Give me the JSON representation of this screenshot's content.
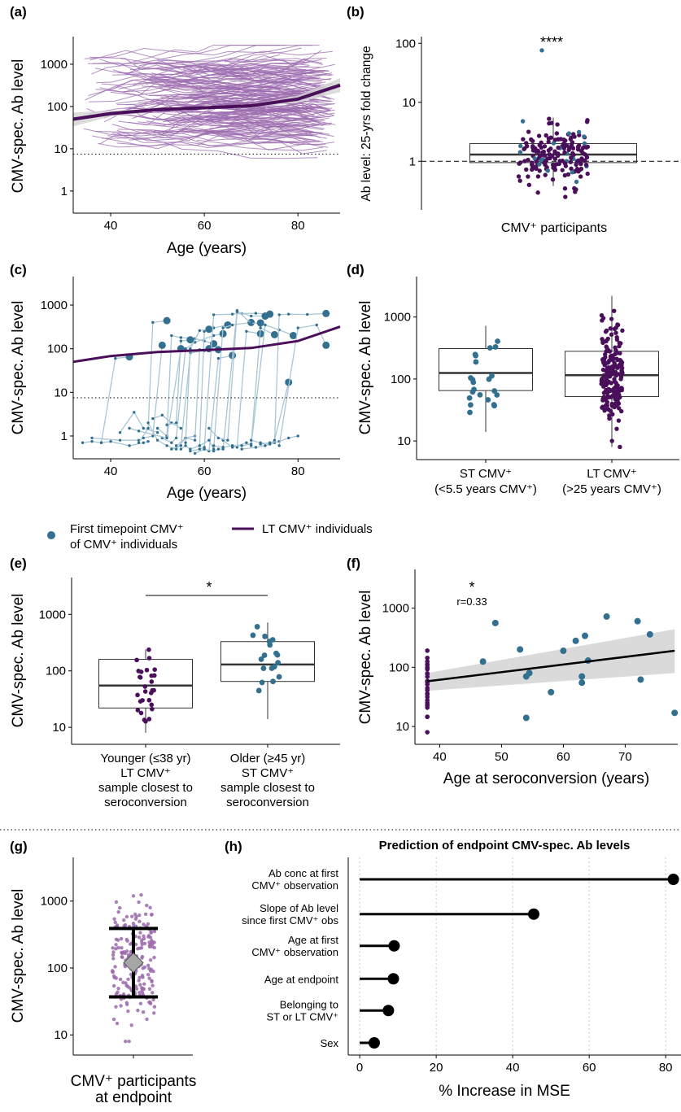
{
  "colors": {
    "lt": "#4a0f5a",
    "lt_light": "#9b6aad",
    "st": "#33708f",
    "st_line": "#a9c6d4",
    "ribbon": "#d3d3d3",
    "grey": "#b0b0b0"
  },
  "panel_labels": [
    "(a)",
    "(b)",
    "(c)",
    "(d)",
    "(e)",
    "(f)",
    "(g)",
    "(h)"
  ],
  "legend": {
    "first_timepoint": "First timepoint CMV⁺\nof CMV⁺ individuals",
    "lt_individuals": "LT CMV⁺ individuals"
  },
  "chart_data": [
    {
      "panel": "(a)",
      "type": "line",
      "xlabel": "Age (years)",
      "ylabel": "CMV-spec. Ab level",
      "xlim": [
        32,
        89
      ],
      "ylim": [
        0.3,
        4500
      ],
      "yscale": "log",
      "x_ticks": [
        "40",
        "60",
        "80"
      ],
      "y_ticks": [
        "1",
        "10",
        "100",
        "1000"
      ],
      "threshold": 7.5,
      "trend": {
        "x": [
          32,
          40,
          50,
          60,
          70,
          80,
          89
        ],
        "y": [
          50,
          68,
          84,
          93,
          104,
          150,
          320
        ],
        "lower": [
          34,
          58,
          78,
          87,
          95,
          124,
          220
        ],
        "upper": [
          72,
          80,
          90,
          99,
          112,
          182,
          470
        ]
      }
    },
    {
      "panel": "(b)",
      "type": "box",
      "xlabel": "CMV⁺ participants",
      "ylabel": "Ab level: 25-yrs fold change",
      "ylim": [
        0.15,
        130
      ],
      "yscale": "log",
      "y_ticks": [
        "1",
        "10",
        "100"
      ],
      "significance": "****",
      "box": {
        "q1": 0.95,
        "median": 1.3,
        "q3": 2.0,
        "whisker_low": 0.38,
        "whisker_high": 5.5
      },
      "outlier": 76
    },
    {
      "panel": "(c)",
      "type": "line",
      "xlabel": "Age (years)",
      "ylabel": "CMV-spec. Ab level",
      "xlim": [
        32,
        89
      ],
      "ylim": [
        0.3,
        4500
      ],
      "yscale": "log",
      "x_ticks": [
        "40",
        "60",
        "80"
      ],
      "y_ticks": [
        "1",
        "10",
        "100",
        "1000"
      ],
      "threshold": 7.5,
      "trend": {
        "x": [
          32,
          40,
          50,
          60,
          70,
          80,
          89
        ],
        "y": [
          50,
          68,
          84,
          93,
          104,
          150,
          320
        ]
      },
      "trajectories": [
        [
          [
            34,
            0.7
          ],
          [
            36,
            0.75
          ],
          [
            38,
            0.7
          ],
          [
            41,
            60
          ],
          [
            44,
            65
          ]
        ],
        [
          [
            36,
            0.9
          ],
          [
            42,
            0.8
          ],
          [
            46,
            0.8
          ]
        ],
        [
          [
            38,
            0.7
          ],
          [
            40,
            0.75
          ],
          [
            44,
            0.6
          ],
          [
            47,
            0.7
          ],
          [
            48,
            0.75
          ]
        ],
        [
          [
            42,
            1.2
          ],
          [
            45,
            3.5
          ],
          [
            47,
            1.5
          ],
          [
            50,
            1.2
          ]
        ],
        [
          [
            46,
            0.7
          ],
          [
            48,
            1.5
          ],
          [
            49,
            400
          ],
          [
            52,
            440
          ]
        ],
        [
          [
            47,
            0.9
          ],
          [
            49,
            1.0
          ],
          [
            51,
            120
          ]
        ],
        [
          [
            48,
            2.0
          ],
          [
            50,
            0.8
          ],
          [
            52,
            0.6
          ],
          [
            54,
            0.5
          ],
          [
            56,
            0.9
          ],
          [
            58,
            1.0
          ]
        ],
        [
          [
            49,
            2.5
          ],
          [
            51,
            3.0
          ],
          [
            53,
            2.0
          ],
          [
            55,
            1.5
          ]
        ],
        [
          [
            50,
            1.5
          ],
          [
            52,
            1.0
          ],
          [
            53,
            200
          ],
          [
            55,
            180
          ],
          [
            58,
            170
          ],
          [
            60,
            150
          ],
          [
            62,
            130
          ]
        ],
        [
          [
            51,
            0.9
          ],
          [
            53,
            0.7
          ],
          [
            54,
            0.9
          ],
          [
            56,
            100
          ],
          [
            58,
            140
          ],
          [
            62,
            200
          ],
          [
            64,
            220
          ]
        ],
        [
          [
            52,
            1.8
          ],
          [
            54,
            2.0
          ],
          [
            55,
            150
          ],
          [
            57,
            160
          ]
        ],
        [
          [
            53,
            0.5
          ],
          [
            55,
            0.6
          ],
          [
            57,
            80
          ],
          [
            60,
            90
          ],
          [
            63,
            95
          ]
        ],
        [
          [
            54,
            0.6
          ],
          [
            56,
            0.9
          ],
          [
            58,
            0.8
          ],
          [
            59,
            95
          ],
          [
            61,
            100
          ]
        ],
        [
          [
            55,
            0.5
          ],
          [
            56,
            0.6
          ],
          [
            57,
            0.5
          ],
          [
            59,
            0.6
          ],
          [
            60,
            250
          ],
          [
            62,
            300
          ],
          [
            65,
            350
          ]
        ],
        [
          [
            56,
            0.7
          ],
          [
            57,
            100
          ],
          [
            59,
            260
          ],
          [
            61,
            280
          ]
        ],
        [
          [
            57,
            0.45
          ],
          [
            59,
            0.5
          ],
          [
            60,
            0.55
          ],
          [
            62,
            600
          ],
          [
            66,
            620
          ],
          [
            68,
            640
          ],
          [
            71,
            650
          ],
          [
            74,
            620
          ]
        ],
        [
          [
            58,
            0.4
          ],
          [
            60,
            0.5
          ],
          [
            61,
            0.45
          ],
          [
            63,
            60
          ],
          [
            66,
            70
          ]
        ],
        [
          [
            59,
            0.6
          ],
          [
            61,
            0.8
          ],
          [
            62,
            0.5
          ],
          [
            64,
            300
          ],
          [
            66,
            350
          ],
          [
            70,
            400
          ]
        ],
        [
          [
            60,
            0.5
          ],
          [
            62,
            0.45
          ],
          [
            63,
            0.5
          ],
          [
            64,
            0.5
          ],
          [
            67,
            750
          ],
          [
            70,
            380
          ],
          [
            72,
            390
          ]
        ],
        [
          [
            62,
            0.6
          ],
          [
            64,
            0.55
          ],
          [
            66,
            0.6
          ],
          [
            67,
            0.55
          ],
          [
            69,
            250
          ],
          [
            72,
            220
          ]
        ],
        [
          [
            64,
            0.8
          ],
          [
            66,
            0.55
          ],
          [
            69,
            0.7
          ],
          [
            70,
            0.6
          ],
          [
            73,
            350
          ],
          [
            76,
            270
          ],
          [
            79,
            200
          ]
        ],
        [
          [
            66,
            0.6
          ],
          [
            68,
            0.6
          ],
          [
            70,
            0.65
          ],
          [
            72,
            300
          ],
          [
            75,
            210
          ]
        ],
        [
          [
            68,
            0.5
          ],
          [
            71,
            0.55
          ],
          [
            73,
            0.6
          ],
          [
            75,
            0.7
          ],
          [
            76,
            600
          ],
          [
            78,
            620
          ],
          [
            82,
            610
          ],
          [
            86,
            640
          ]
        ],
        [
          [
            70,
            0.8
          ],
          [
            72,
            0.7
          ],
          [
            74,
            0.65
          ],
          [
            75,
            0.8
          ],
          [
            78,
            17
          ]
        ],
        [
          [
            72,
            0.65
          ],
          [
            74,
            0.7
          ],
          [
            76,
            0.75
          ],
          [
            78,
            0.9
          ],
          [
            80,
            1.0
          ]
        ],
        [
          [
            44,
            1.5
          ],
          [
            46,
            1.3
          ],
          [
            52,
            0.9
          ],
          [
            55,
            100
          ]
        ],
        [
          [
            61,
            1.5
          ],
          [
            63,
            0.9
          ],
          [
            65,
            0.8
          ],
          [
            67,
            700
          ],
          [
            70,
            560
          ],
          [
            73,
            560
          ]
        ],
        [
          [
            76,
            0.6
          ],
          [
            80,
            300
          ],
          [
            84,
            350
          ],
          [
            86,
            120
          ]
        ]
      ]
    },
    {
      "panel": "(d)",
      "type": "box",
      "ylabel": "CMV-spec. Ab level",
      "ylim": [
        5,
        4500
      ],
      "yscale": "log",
      "y_ticks": [
        "10",
        "100",
        "1000"
      ],
      "categories": [
        "ST CMV⁺\n(<5.5 years CMV⁺)",
        "LT CMV⁺\n(>25 years CMV⁺)"
      ],
      "boxes": [
        {
          "q1": 65,
          "median": 125,
          "q3": 310,
          "whisker_low": 14,
          "whisker_high": 720
        },
        {
          "q1": 52,
          "median": 115,
          "q3": 280,
          "whisker_low": 8,
          "whisker_high": 2200
        }
      ]
    },
    {
      "panel": "(e)",
      "type": "box",
      "ylabel": "CMV-spec. Ab level",
      "ylim": [
        5,
        4500
      ],
      "yscale": "log",
      "y_ticks": [
        "10",
        "100",
        "1000"
      ],
      "categories": [
        "Younger (≤38  yr)\nLT CMV⁺\nsample closest to\nseroconversion",
        "Older (≥45  yr)\nST CMV⁺\nsample closest to\nseroconversion"
      ],
      "significance": "*",
      "boxes": [
        {
          "q1": 22,
          "median": 55,
          "q3": 160,
          "whisker_low": 8,
          "whisker_high": 240
        },
        {
          "q1": 65,
          "median": 130,
          "q3": 330,
          "whisker_low": 14,
          "whisker_high": 720
        }
      ]
    },
    {
      "panel": "(f)",
      "type": "scatter",
      "xlabel": "Age at seroconversion (years)",
      "ylabel": "CMV-spec. Ab level",
      "xlim": [
        36,
        78.5
      ],
      "ylim": [
        5,
        4500
      ],
      "yscale": "log",
      "x_ticks": [
        "40",
        "50",
        "60",
        "70"
      ],
      "y_ticks": [
        "10",
        "100",
        "1000"
      ],
      "significance": "*",
      "annotation": "r=0.33",
      "st_points": [
        [
          47,
          125
        ],
        [
          49,
          560
        ],
        [
          53,
          200
        ],
        [
          54,
          70
        ],
        [
          54,
          14
        ],
        [
          54.5,
          80
        ],
        [
          58,
          38
        ],
        [
          60,
          190
        ],
        [
          62,
          280
        ],
        [
          63,
          55
        ],
        [
          63,
          70
        ],
        [
          63.5,
          340
        ],
        [
          64,
          130
        ],
        [
          67,
          720
        ],
        [
          72,
          600
        ],
        [
          72.5,
          62
        ],
        [
          74,
          360
        ],
        [
          78,
          17
        ]
      ],
      "fit": {
        "x": [
          38,
          78
        ],
        "y": [
          58,
          190
        ],
        "lower": [
          40,
          80
        ],
        "upper": [
          80,
          440
        ]
      }
    },
    {
      "panel": "(g)",
      "type": "pointrange",
      "xlabel": "CMV⁺ participants\nat endpoint",
      "ylabel": "CMV-spec. Ab level",
      "ylim": [
        5,
        4500
      ],
      "yscale": "log",
      "y_ticks": [
        "10",
        "100",
        "1000"
      ],
      "summary": {
        "center": 120,
        "lower": 37,
        "upper": 390
      }
    },
    {
      "panel": "(h)",
      "type": "lollipop",
      "title": "Prediction of endpoint CMV-spec. Ab levels",
      "xlabel": "% Increase in MSE",
      "xlim": [
        -3,
        84
      ],
      "x_ticks": [
        "0",
        "20",
        "40",
        "60",
        "80"
      ],
      "categories": [
        "Ab conc at first\nCMV⁺ observation",
        "Slope of Ab level\nsince first CMV⁺ obs",
        "Age at first\nCMV⁺ observation",
        "Age at endpoint",
        "Belonging to\nST or LT CMV⁺",
        "Sex"
      ],
      "values": [
        82,
        45.5,
        9,
        8.8,
        7.5,
        3.8
      ]
    }
  ]
}
